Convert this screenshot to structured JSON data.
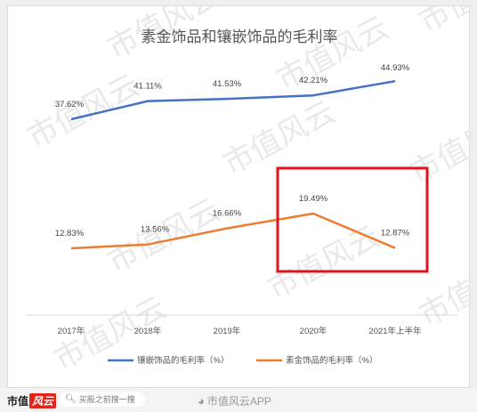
{
  "chart_data": {
    "type": "line",
    "title": "素金饰品和镶嵌饰品的毛利率",
    "categories": [
      "2017年",
      "2018年",
      "2019年",
      "2020年",
      "2021年上半年"
    ],
    "series": [
      {
        "name": "镶嵌饰品的毛利率（%）",
        "color": "#4472c4",
        "values": [
          37.62,
          41.11,
          41.53,
          42.21,
          44.93
        ],
        "labels": [
          "37.62%",
          "41.11%",
          "41.53%",
          "42.21%",
          "44.93%"
        ]
      },
      {
        "name": "素金饰品的毛利率（%）",
        "color": "#ed7d31",
        "values": [
          12.83,
          13.56,
          16.66,
          19.49,
          12.87
        ],
        "labels": [
          "12.83%",
          "13.56%",
          "16.66%",
          "19.49%",
          "12.87%"
        ]
      }
    ],
    "xlabel": "",
    "ylabel": "",
    "ylim": [
      0,
      55
    ],
    "grid": false,
    "legend": "bottom",
    "highlight": {
      "color": "#e0121b",
      "categories": [
        "2020年",
        "2021年上半年"
      ]
    }
  },
  "watermark": {
    "text": "市值风云"
  },
  "footer": {
    "logo_text": "市值",
    "logo_badge": "风云",
    "search_placeholder": "买股之前搜一搜",
    "search_icon": "search-icon",
    "weibo_icon": "weibo-icon",
    "weibo_text": "市值风云APP"
  }
}
